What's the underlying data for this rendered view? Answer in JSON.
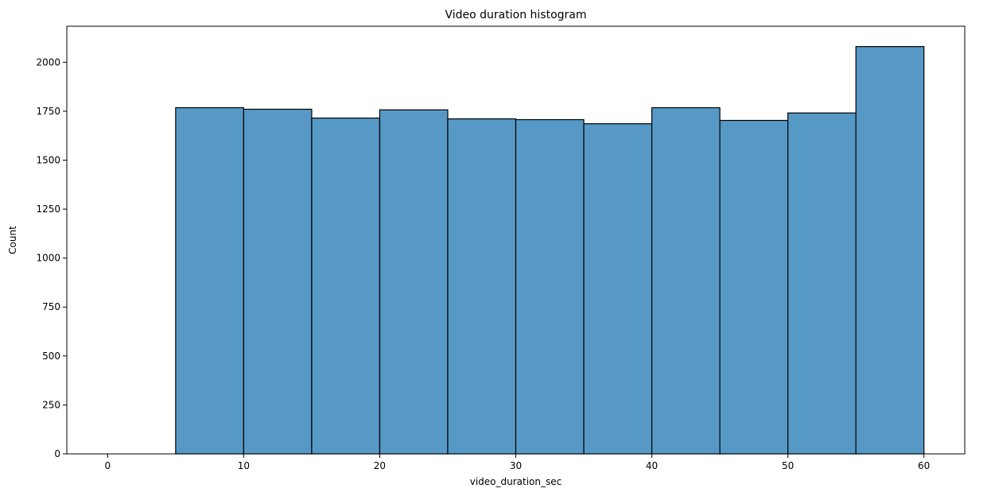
{
  "chart_data": {
    "type": "bar",
    "title": "Video duration histogram",
    "xlabel": "video_duration_sec",
    "ylabel": "Count",
    "bins": [
      {
        "x0": 0,
        "x1": 5,
        "count": 0
      },
      {
        "x0": 5,
        "x1": 10,
        "count": 1768
      },
      {
        "x0": 10,
        "x1": 15,
        "count": 1760
      },
      {
        "x0": 15,
        "x1": 20,
        "count": 1715
      },
      {
        "x0": 20,
        "x1": 25,
        "count": 1757
      },
      {
        "x0": 25,
        "x1": 30,
        "count": 1711
      },
      {
        "x0": 30,
        "x1": 35,
        "count": 1707
      },
      {
        "x0": 35,
        "x1": 40,
        "count": 1686
      },
      {
        "x0": 40,
        "x1": 45,
        "count": 1768
      },
      {
        "x0": 45,
        "x1": 50,
        "count": 1703
      },
      {
        "x0": 50,
        "x1": 55,
        "count": 1741
      },
      {
        "x0": 55,
        "x1": 60,
        "count": 2080
      }
    ],
    "xlim": [
      -3,
      63
    ],
    "ylim": [
      0,
      2184
    ],
    "xticks": [
      0,
      10,
      20,
      30,
      40,
      50,
      60
    ],
    "yticks": [
      0,
      250,
      500,
      750,
      1000,
      1250,
      1500,
      1750,
      2000
    ],
    "grid": false,
    "legend": "none",
    "bar_color": "#5799c6",
    "edge_color": "#000000"
  }
}
